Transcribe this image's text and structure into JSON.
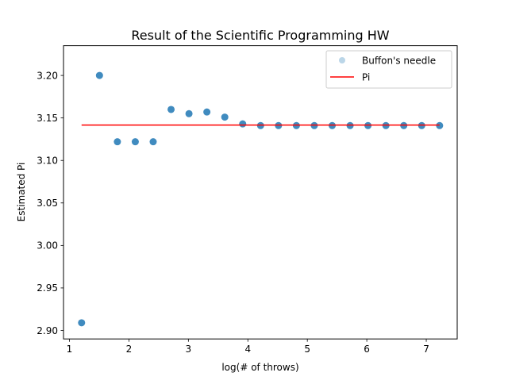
{
  "chart_data": {
    "type": "scatter",
    "title": "Result of the Scientific Programming HW",
    "xlabel": "log(# of throws)",
    "ylabel": "Estimated Pi",
    "xlim": [
      0.9,
      7.52
    ],
    "ylim": [
      2.89,
      3.235
    ],
    "xticks": [
      1,
      2,
      3,
      4,
      5,
      6,
      7
    ],
    "xtick_labels": [
      "1",
      "2",
      "3",
      "4",
      "5",
      "6",
      "7"
    ],
    "yticks": [
      2.9,
      2.95,
      3.0,
      3.05,
      3.1,
      3.15,
      3.2
    ],
    "ytick_labels": [
      "2.90",
      "2.95",
      "3.00",
      "3.05",
      "3.10",
      "3.15",
      "3.20"
    ],
    "grid": false,
    "legend_position": "top-right",
    "series": [
      {
        "name": "Buffon's needle",
        "kind": "scatter",
        "color": "#1f77b4",
        "x": [
          1.204,
          1.505,
          1.806,
          2.107,
          2.408,
          2.709,
          3.01,
          3.311,
          3.612,
          3.913,
          4.214,
          4.515,
          4.816,
          5.117,
          5.418,
          5.719,
          6.02,
          6.321,
          6.622,
          6.923,
          7.224
        ],
        "y": [
          2.909,
          3.2,
          3.122,
          3.122,
          3.122,
          3.16,
          3.155,
          3.157,
          3.151,
          3.143,
          3.141,
          3.141,
          3.141,
          3.141,
          3.141,
          3.141,
          3.141,
          3.141,
          3.141,
          3.141,
          3.141
        ]
      },
      {
        "name": "Pi",
        "kind": "line",
        "color": "#ff0000",
        "x": [
          1.204,
          7.224
        ],
        "y": [
          3.14159,
          3.14159
        ]
      }
    ]
  }
}
